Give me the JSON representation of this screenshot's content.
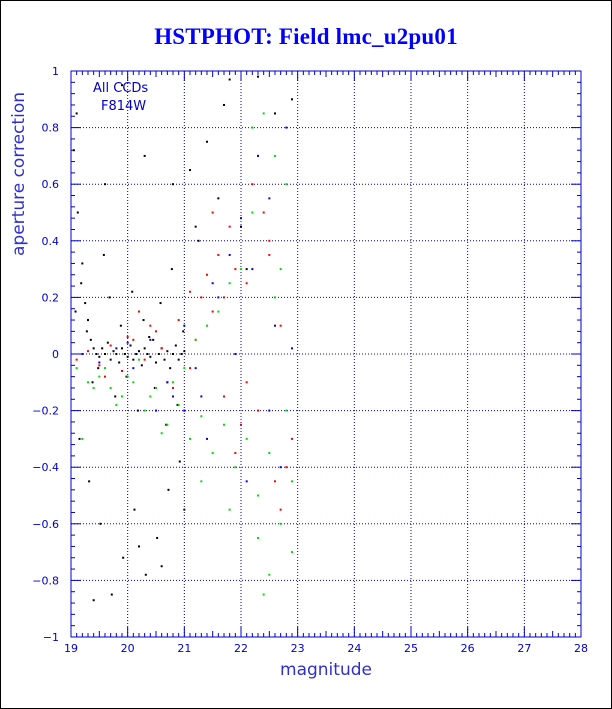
{
  "title": "HSTPHOT: Field lmc_u2pu01",
  "colors": {
    "title": "#0000ff",
    "axis": "#0000cc",
    "grid": "#0000cc",
    "series_black": "#000000",
    "series_red": "#ff0000",
    "series_green": "#00dd00",
    "series_blue": "#0000ff"
  },
  "chart_data": {
    "type": "scatter",
    "title": "HSTPHOT: Field lmc_u2pu01",
    "xlabel": "magnitude",
    "ylabel": "aperture correction",
    "xlim": [
      19,
      28
    ],
    "ylim": [
      -1,
      1
    ],
    "xticks": [
      "19",
      "20",
      "21",
      "22",
      "23",
      "24",
      "25",
      "26",
      "27",
      "28"
    ],
    "yticks": [
      "1",
      "0.8",
      "0.6",
      "0.4",
      "0.2",
      "0",
      "−0.2",
      "−0.4",
      "−0.6",
      "−0.8",
      "−1"
    ],
    "grid": "dotted",
    "annotations": [
      "All CCDs",
      "F814W"
    ],
    "series": [
      {
        "color": "#000000",
        "x": [
          19.05,
          19.1,
          19.12,
          19.2,
          19.25,
          19.3,
          19.35,
          19.4,
          19.45,
          19.5,
          19.55,
          19.6,
          19.65,
          19.7,
          19.75,
          19.8,
          19.85,
          19.9,
          19.95,
          20.0,
          20.05,
          20.1,
          20.15,
          20.2,
          20.25,
          20.3,
          20.35,
          20.4,
          20.45,
          20.5,
          20.55,
          20.6,
          20.65,
          20.7,
          20.75,
          20.8,
          20.85,
          20.9,
          20.95,
          21.0,
          19.08,
          19.18,
          19.28,
          19.38,
          19.48,
          19.58,
          19.68,
          19.78,
          19.88,
          19.98,
          20.08,
          20.18,
          20.28,
          20.38,
          20.48,
          20.58,
          20.68,
          20.78,
          20.88,
          20.98,
          19.15,
          19.32,
          19.52,
          19.72,
          19.92,
          20.12,
          20.32,
          20.52,
          20.72,
          20.92,
          21.1,
          21.25,
          21.4,
          21.6,
          21.8,
          22.0,
          22.3,
          22.6,
          22.9,
          19.6,
          19.9,
          20.3,
          20.8,
          21.2,
          21.7,
          22.1,
          19.4,
          20.2,
          20.6,
          21.0
        ],
        "y": [
          0.72,
          0.85,
          0.5,
          0.32,
          0.18,
          0.12,
          0.05,
          0.02,
          0.0,
          -0.01,
          0.02,
          0.0,
          0.04,
          -0.02,
          0.01,
          0.0,
          -0.03,
          0.02,
          0.0,
          -0.01,
          0.03,
          -0.02,
          0.0,
          0.01,
          -0.04,
          0.02,
          0.0,
          -0.01,
          0.05,
          -0.03,
          0.0,
          0.02,
          -0.02,
          0.01,
          -0.05,
          0.0,
          0.03,
          -0.02,
          0.0,
          0.01,
          0.15,
          0.25,
          0.08,
          -0.1,
          -0.05,
          0.35,
          0.2,
          -0.15,
          0.1,
          -0.08,
          0.22,
          -0.2,
          0.12,
          0.06,
          -0.12,
          0.18,
          -0.25,
          0.3,
          -0.18,
          0.08,
          -0.3,
          -0.45,
          -0.6,
          -0.85,
          -0.72,
          -0.55,
          -0.78,
          -0.65,
          -0.48,
          -0.38,
          0.65,
          0.4,
          0.75,
          0.55,
          0.97,
          0.45,
          0.98,
          0.85,
          0.9,
          0.6,
          0.95,
          0.7,
          0.6,
          0.45,
          0.88,
          0.3,
          -0.87,
          -0.68,
          -0.75,
          -0.55
        ]
      },
      {
        "color": "#ff0000",
        "x": [
          19.1,
          19.3,
          19.5,
          19.7,
          19.9,
          20.1,
          20.3,
          20.5,
          20.7,
          20.9,
          21.1,
          21.3,
          21.5,
          21.7,
          21.9,
          22.1,
          22.3,
          22.5,
          22.7,
          22.9,
          19.2,
          19.6,
          20.0,
          20.4,
          20.8,
          21.2,
          21.6,
          22.0,
          22.4,
          22.8,
          20.2,
          20.6,
          21.0,
          21.4,
          21.8,
          22.2,
          22.6,
          21.5,
          21.9,
          22.3,
          22.7,
          21.1,
          21.7,
          22.1,
          22.5
        ],
        "y": [
          -0.02,
          0.01,
          -0.04,
          0.03,
          -0.06,
          0.05,
          -0.02,
          0.08,
          -0.1,
          0.12,
          -0.05,
          0.2,
          0.15,
          -0.15,
          0.3,
          0.25,
          -0.2,
          0.4,
          0.1,
          -0.3,
          0.0,
          -0.08,
          0.06,
          0.1,
          -0.12,
          0.05,
          0.35,
          -0.25,
          0.5,
          -0.4,
          0.15,
          0.02,
          -0.2,
          0.28,
          0.45,
          0.6,
          -0.45,
          0.5,
          -0.35,
          0.7,
          -0.55,
          0.22,
          0.2,
          -0.1,
          0.35
        ]
      },
      {
        "color": "#00dd00",
        "x": [
          19.1,
          19.3,
          19.5,
          19.7,
          19.9,
          20.1,
          20.3,
          20.5,
          20.7,
          20.9,
          21.1,
          21.3,
          21.5,
          21.7,
          21.9,
          22.1,
          22.3,
          22.5,
          22.7,
          22.9,
          19.2,
          19.4,
          19.6,
          19.8,
          20.0,
          20.2,
          20.4,
          20.6,
          20.8,
          21.0,
          21.2,
          21.4,
          21.6,
          21.8,
          22.0,
          22.2,
          22.4,
          22.6,
          22.8,
          21.3,
          21.8,
          22.3,
          22.8,
          22.5,
          22.9,
          22.4,
          22.6,
          22.2,
          22.7
        ],
        "y": [
          -0.05,
          -0.1,
          -0.08,
          -0.12,
          -0.15,
          -0.1,
          -0.2,
          -0.12,
          -0.25,
          -0.18,
          -0.3,
          -0.22,
          -0.35,
          -0.25,
          -0.4,
          -0.3,
          -0.5,
          -0.35,
          -0.6,
          -0.45,
          -0.3,
          -0.12,
          -0.05,
          -0.18,
          -0.08,
          -0.02,
          -0.15,
          -0.28,
          -0.1,
          -0.05,
          0.05,
          0.1,
          0.15,
          0.25,
          0.3,
          0.5,
          0.85,
          0.7,
          0.6,
          -0.45,
          -0.55,
          -0.65,
          -0.2,
          -0.78,
          -0.7,
          -0.85,
          0.2,
          0.8,
          0.3
        ]
      },
      {
        "color": "#0000ff",
        "x": [
          19.2,
          19.5,
          19.8,
          20.1,
          20.4,
          20.7,
          21.0,
          21.3,
          21.6,
          21.9,
          22.2,
          22.5,
          22.8,
          20.0,
          20.5,
          21.0,
          21.5,
          22.0,
          22.5,
          22.9,
          20.8,
          21.2,
          21.8,
          22.3,
          22.7,
          21.4,
          22.1,
          22.6
        ],
        "y": [
          0.0,
          -0.03,
          0.02,
          -0.05,
          0.05,
          -0.1,
          0.1,
          -0.15,
          0.2,
          0.0,
          0.3,
          -0.2,
          0.8,
          0.04,
          -0.2,
          -0.2,
          0.25,
          0.48,
          0.55,
          0.02,
          -0.15,
          -0.05,
          0.35,
          0.7,
          -0.4,
          -0.3,
          -0.45,
          0.1
        ]
      }
    ]
  }
}
